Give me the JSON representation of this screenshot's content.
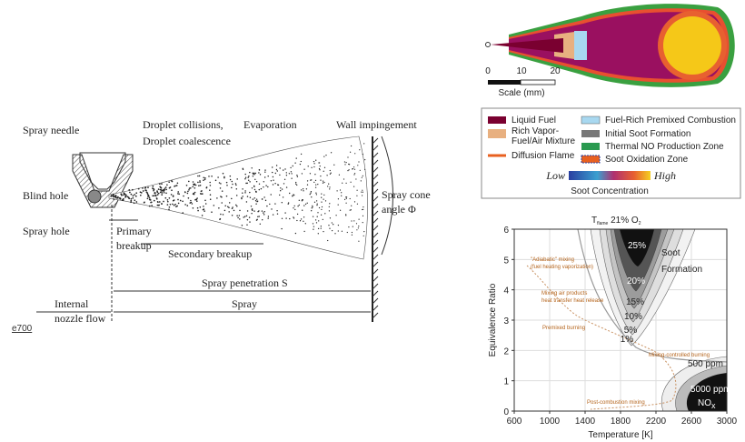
{
  "spray_diagram": {
    "spray_needle": "Spray needle",
    "blind_hole": "Blind hole",
    "spray_hole": "Spray hole",
    "droplet_collisions": "Droplet collisions,",
    "droplet_coalescence": "Droplet coalescence",
    "evaporation": "Evaporation",
    "wall_impingement": "Wall impingement",
    "spray_cone_angle": [
      "Spray cone",
      "angle Φ"
    ],
    "primary_breakup": [
      "Primary",
      "breakup"
    ],
    "secondary_breakup": "Secondary breakup",
    "spray_penetration": "Spray penetration S",
    "spray": "Spray",
    "internal_nozzle_flow": [
      "Internal",
      "nozzle flow"
    ]
  },
  "link": "e700",
  "flame_diagram": {
    "scale_ticks": [
      0,
      10,
      20
    ],
    "scale_label": "Scale (mm)"
  },
  "legend": {
    "items": [
      [
        "Liquid Fuel"
      ],
      [
        "Rich Vapor-",
        "Fuel/Air Mixture"
      ],
      [
        "Diffusion Flame"
      ],
      [
        "Fuel-Rich Premixed Combustion"
      ],
      [
        "Initial Soot Formation"
      ],
      [
        "Thermal NO Production Zone"
      ],
      [
        "Soot Oxidation Zone"
      ]
    ],
    "low": "Low",
    "high": "High",
    "gradient_label": "Soot Concentration"
  },
  "phi_t_map": {
    "xlabel": "Temperature [K]",
    "ylabel": "Equivalence Ratio",
    "xlim": [
      600,
      3000
    ],
    "ylim": [
      0,
      6
    ],
    "xticks": [
      600,
      1000,
      1400,
      1800,
      2200,
      2600,
      3000
    ],
    "yticks": [
      0,
      1,
      2,
      3,
      4,
      5,
      6
    ],
    "t_flame": [
      "T",
      "flame",
      " 21% O",
      "2"
    ],
    "contour_labels": [
      "25%",
      "20%",
      "15%",
      "10%",
      "5%",
      "1%"
    ],
    "soot_label": [
      "Soot",
      "Formation"
    ],
    "nox_levels": [
      "500 ppm",
      "5000 ppm"
    ],
    "nox_label": [
      "NO",
      "x"
    ],
    "annotations": {
      "adiabatic": [
        "\"Adiabatic\" mixing",
        "(fuel heating vaporization)"
      ],
      "mixing_products": [
        "Mixing air products",
        "heat transfer heat release"
      ],
      "premixed": "Premixed burning",
      "mixing_controlled": "Mixing-controlled burning",
      "post_combustion": "Post-combustion mixing"
    }
  }
}
